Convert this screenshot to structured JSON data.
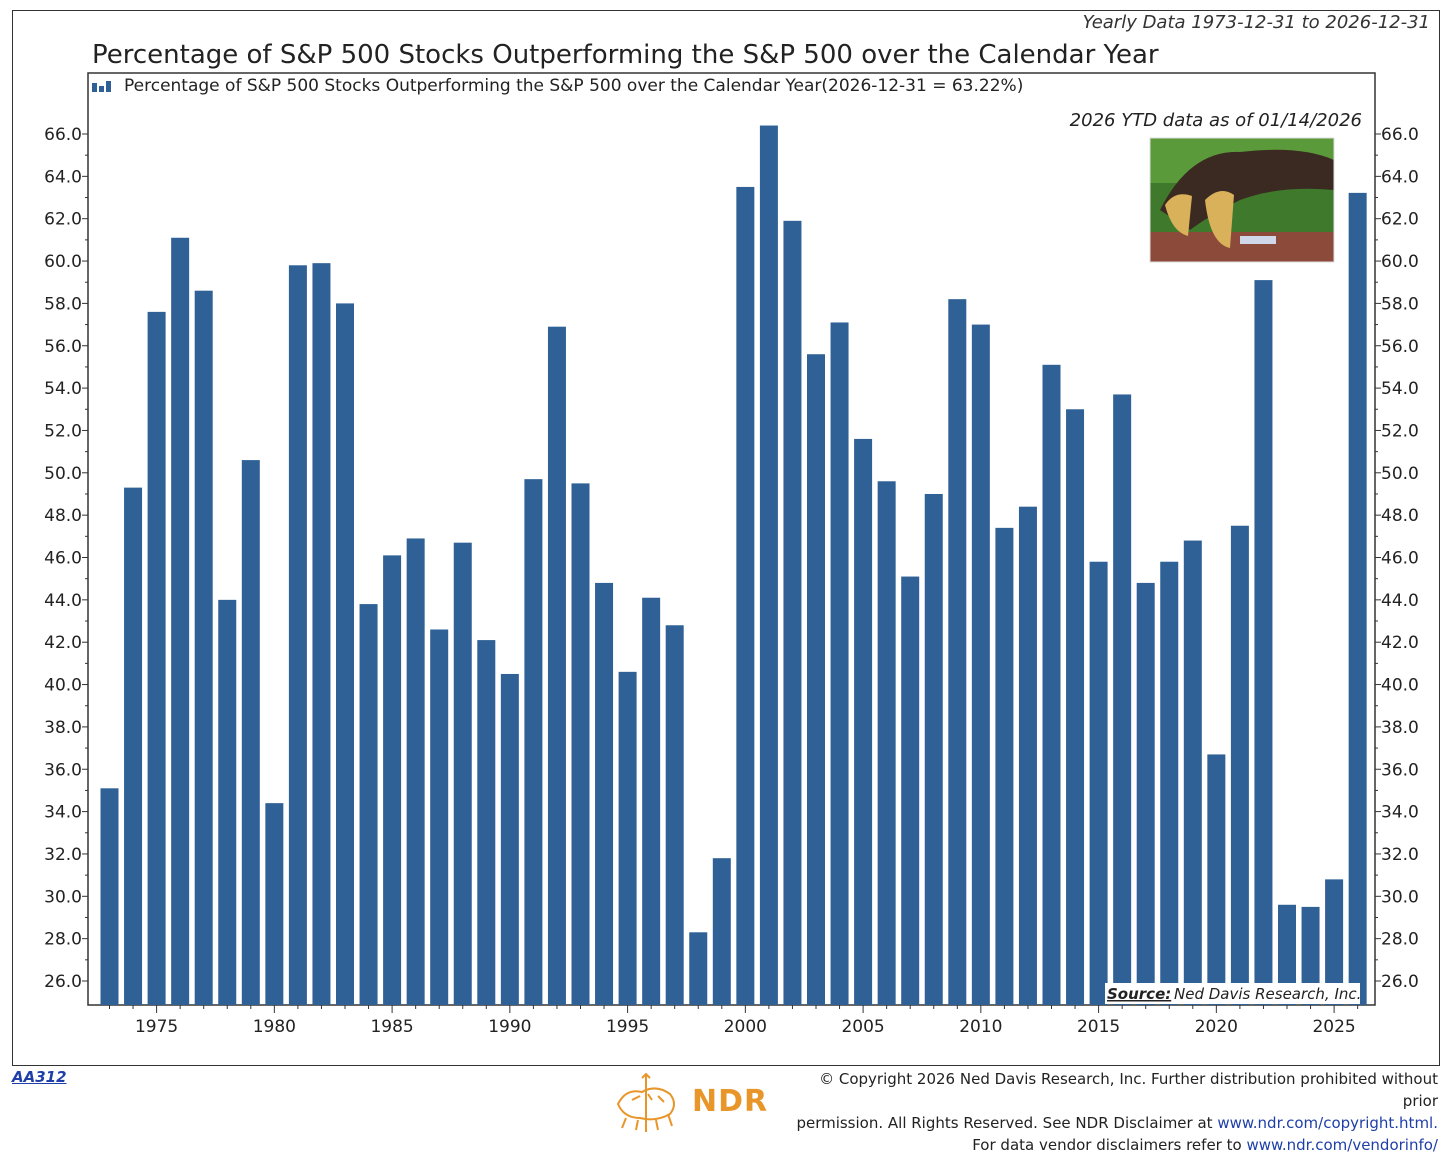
{
  "header": {
    "range_label": "Yearly Data 1973-12-31 to 2026-12-31",
    "title": "Percentage of S&P 500 Stocks Outperforming the S&P 500 over the Calendar Year"
  },
  "colors": {
    "bar": "#2f6196",
    "frame": "#333333",
    "accent": "#e8962a",
    "link": "#1f3fa8"
  },
  "chart_data": {
    "type": "bar",
    "x_label_ticks": [
      "1975",
      "1980",
      "1985",
      "1990",
      "1995",
      "2000",
      "2005",
      "2010",
      "2015",
      "2020",
      "2025"
    ],
    "ylim": [
      25.0,
      67.0
    ],
    "y_ticks": [
      "26.0",
      "28.0",
      "30.0",
      "32.0",
      "34.0",
      "36.0",
      "38.0",
      "40.0",
      "42.0",
      "44.0",
      "46.0",
      "48.0",
      "50.0",
      "52.0",
      "54.0",
      "56.0",
      "58.0",
      "60.0",
      "62.0",
      "64.0",
      "66.0"
    ],
    "legend": "Percentage of S&P 500 Stocks Outperforming the S&P 500 over the Calendar Year(2026-12-31 = 63.22%)",
    "annotation": "2026 YTD data as of 01/14/2026",
    "source_label": "Source:",
    "source_text": "Ned Davis Research, Inc.",
    "grid": false,
    "series": [
      {
        "x": [
          1973,
          1974,
          1975,
          1976,
          1977,
          1978,
          1979,
          1980,
          1981,
          1982,
          1983,
          1984,
          1985,
          1986,
          1987,
          1988,
          1989,
          1990,
          1991,
          1992,
          1993,
          1994,
          1995,
          1996,
          1997,
          1998,
          1999,
          2000,
          2001,
          2002,
          2003,
          2004,
          2005,
          2006,
          2007,
          2008,
          2009,
          2010,
          2011,
          2012,
          2013,
          2014,
          2015,
          2016,
          2017,
          2018,
          2019,
          2020,
          2021,
          2022,
          2023,
          2024,
          2025,
          2026
        ],
        "values": [
          35.1,
          49.3,
          57.6,
          61.1,
          58.6,
          44.0,
          50.6,
          34.4,
          59.8,
          59.9,
          58.0,
          43.8,
          46.1,
          46.9,
          42.6,
          46.7,
          42.1,
          40.5,
          49.7,
          56.9,
          49.5,
          44.8,
          40.6,
          44.1,
          42.8,
          28.3,
          31.8,
          63.5,
          66.4,
          61.9,
          55.6,
          57.1,
          51.6,
          49.6,
          45.1,
          49.0,
          58.2,
          57.0,
          47.4,
          48.4,
          55.1,
          53.0,
          45.8,
          53.7,
          44.8,
          45.8,
          46.8,
          36.7,
          47.5,
          59.1,
          29.6,
          29.5,
          30.8,
          63.22
        ]
      }
    ]
  },
  "footer": {
    "chart_id": "AA312",
    "brand": "NDR",
    "copyright_line1": "© Copyright 2026 Ned Davis Research, Inc. Further distribution prohibited without prior",
    "copyright_line2_text": "permission. All Rights Reserved. See NDR Disclaimer at",
    "copyright_line2_link": "www.ndr.com/copyright.html.",
    "copyright_line3_text": "For data vendor disclaimers refer to",
    "copyright_line3_link": "www.ndr.com/vendorinfo/"
  }
}
